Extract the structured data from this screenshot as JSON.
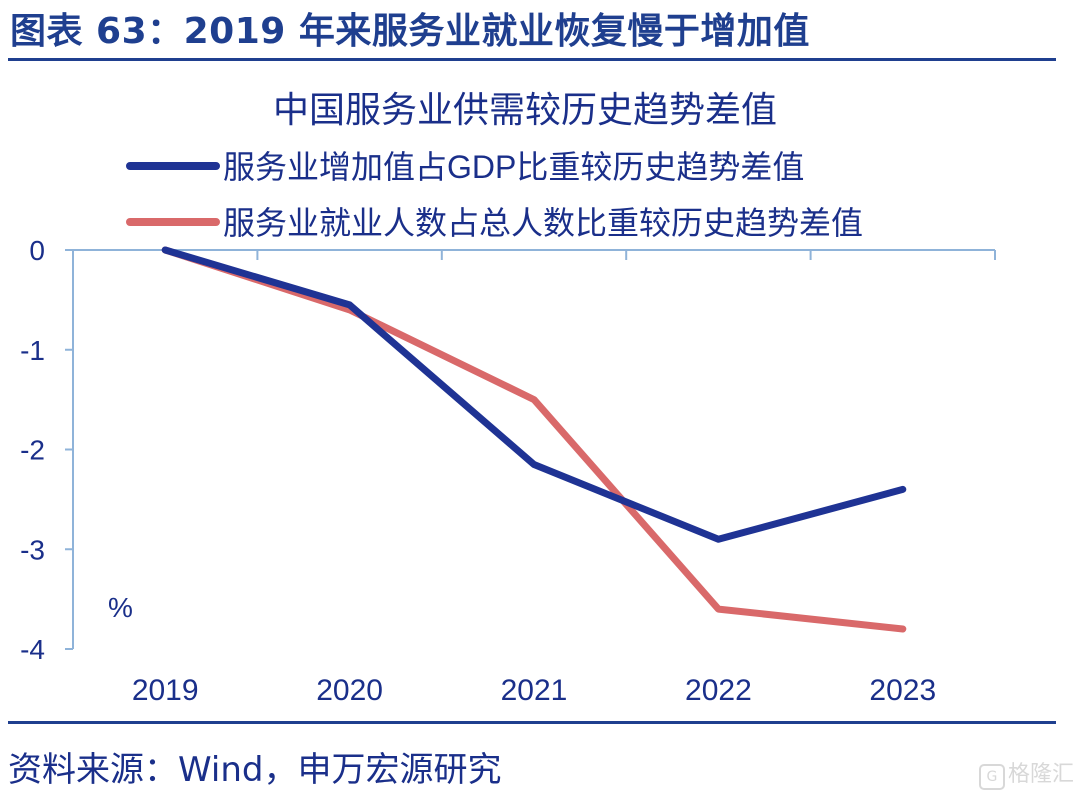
{
  "figure": {
    "title": "图表 63：2019 年来服务业就业恢复慢于增加值",
    "source": "资料来源：Wind，申万宏源研究",
    "watermark": "格隆汇"
  },
  "chart_data": {
    "type": "line",
    "title": "中国服务业供需较历史趋势差值",
    "x": [
      "2019",
      "2020",
      "2021",
      "2022",
      "2023"
    ],
    "yunit": "%",
    "ylim": [
      -4,
      0
    ],
    "yticks": [
      0,
      -1,
      -2,
      -3,
      -4
    ],
    "grid": false,
    "legend_position": "top",
    "series": [
      {
        "name": "服务业增加值占GDP比重较历史趋势差值",
        "color": "#1f3394",
        "values": [
          0,
          -0.55,
          -2.15,
          -2.9,
          -2.4
        ]
      },
      {
        "name": "服务业就业人数占总人数比重较历史趋势差值",
        "color": "#d9696a",
        "values": [
          0,
          -0.6,
          -1.5,
          -3.6,
          -3.8
        ]
      }
    ],
    "colors": {
      "axis": "#8fb3d9",
      "label": "#1a2f8a"
    }
  }
}
